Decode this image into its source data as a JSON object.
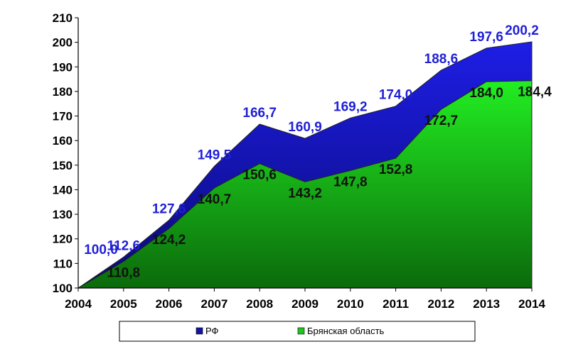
{
  "chart_data": {
    "type": "area",
    "title": "",
    "xlabel": "",
    "ylabel": "",
    "x": [
      "2004",
      "2005",
      "2006",
      "2007",
      "2008",
      "2009",
      "2010",
      "2011",
      "2012",
      "2013",
      "2014"
    ],
    "ylim": [
      100,
      210
    ],
    "yticks": [
      100,
      110,
      120,
      130,
      140,
      150,
      160,
      170,
      180,
      190,
      200,
      210
    ],
    "grid": false,
    "legend_position": "bottom",
    "series": [
      {
        "name": "РФ",
        "color": "#1414a0",
        "values": [
          100.0,
          112.6,
          127.6,
          149.5,
          166.7,
          160.9,
          169.2,
          174.0,
          188.6,
          197.6,
          200.2
        ],
        "labels": [
          "100,0",
          "112,6",
          "127,6",
          "149,5",
          "166,7",
          "160,9",
          "169,2",
          "174,0",
          "188,6",
          "197,6",
          "200,2"
        ]
      },
      {
        "name": "Брянская область",
        "color": "#22c322",
        "values": [
          100.0,
          110.8,
          124.2,
          140.7,
          150.6,
          143.2,
          147.8,
          152.8,
          172.7,
          184.0,
          184.4
        ],
        "labels": [
          "",
          "110,8",
          "124,2",
          "140,7",
          "150,6",
          "143,2",
          "147,8",
          "152,8",
          "172,7",
          "184,0",
          "184,4"
        ]
      }
    ]
  }
}
